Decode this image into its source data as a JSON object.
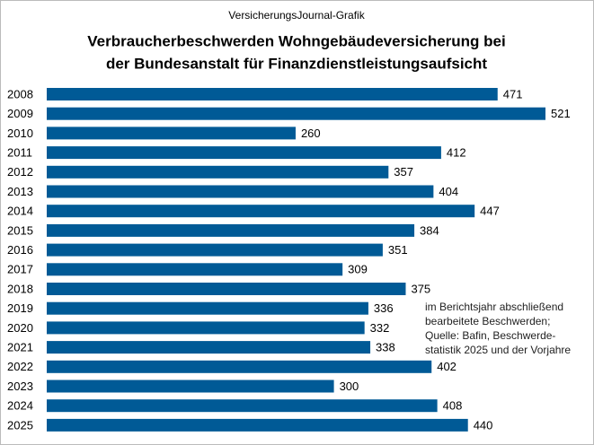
{
  "chart_data": {
    "type": "bar",
    "orientation": "horizontal",
    "subtitle": "VersicherungsJournal-Grafik",
    "title": [
      "Verbraucherbeschwerden Wohngebäudeversicherung bei",
      "der Bundesanstalt für Finanzdienstleistungsaufsicht"
    ],
    "annotation": [
      "im Berichtsjahr abschließend",
      "bearbeitete Beschwerden;",
      "Quelle: Bafin, Beschwerde-",
      "statistik 2025 und der Vorjahre"
    ],
    "categories": [
      "2008",
      "2009",
      "2010",
      "2011",
      "2012",
      "2013",
      "2014",
      "2015",
      "2016",
      "2017",
      "2018",
      "2019",
      "2020",
      "2021",
      "2022",
      "2023",
      "2024",
      "2025"
    ],
    "values": [
      471,
      521,
      260,
      412,
      357,
      404,
      447,
      384,
      351,
      309,
      375,
      336,
      332,
      338,
      402,
      300,
      408,
      440
    ],
    "color": "#005a96"
  }
}
